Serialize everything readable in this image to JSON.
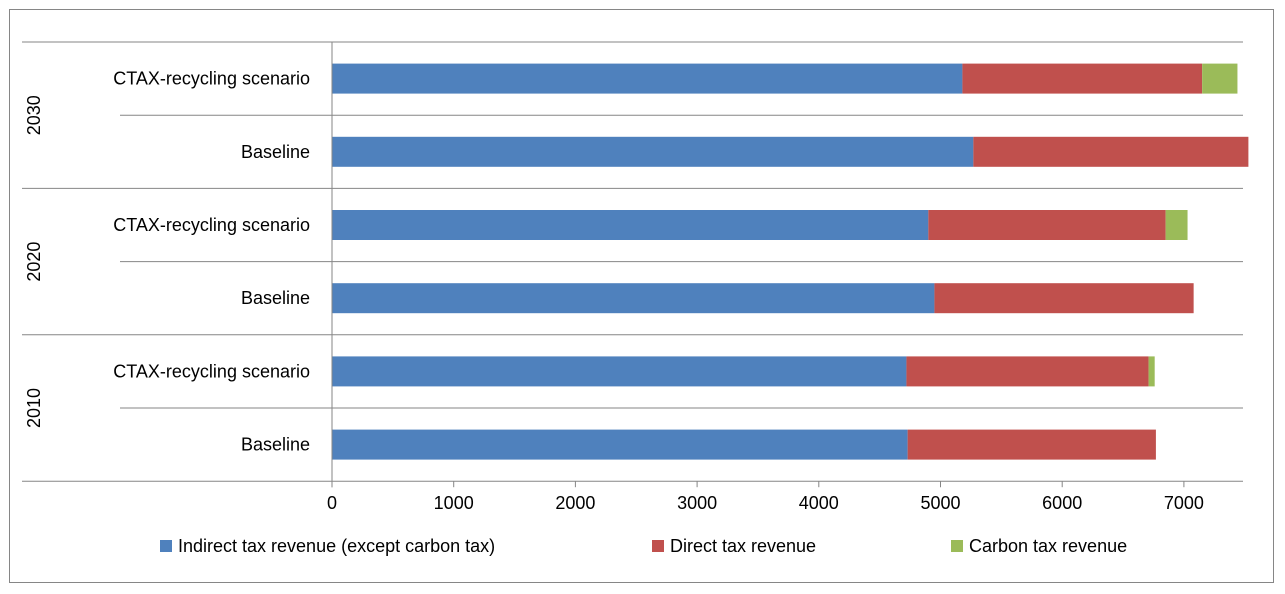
{
  "chart_data": {
    "type": "bar",
    "orientation": "horizontal",
    "stacked": true,
    "title": "",
    "xlabel": "",
    "ylabel": "",
    "xlim": [
      0,
      7500
    ],
    "xticks": [
      0,
      1000,
      2000,
      3000,
      4000,
      5000,
      6000,
      7000
    ],
    "groups": [
      "2030",
      "2020",
      "2010"
    ],
    "categories": [
      {
        "group": "2030",
        "label": "CTAX-recycling scenario"
      },
      {
        "group": "2030",
        "label": "Baseline"
      },
      {
        "group": "2020",
        "label": "CTAX-recycling scenario"
      },
      {
        "group": "2020",
        "label": "Baseline"
      },
      {
        "group": "2010",
        "label": "CTAX-recycling scenario"
      },
      {
        "group": "2010",
        "label": "Baseline"
      }
    ],
    "series": [
      {
        "name": "Indirect tax revenue (except carbon tax)",
        "color": "#4F81BD",
        "values": [
          5180,
          5270,
          4900,
          4950,
          4720,
          4730
        ]
      },
      {
        "name": "Direct tax revenue",
        "color": "#C0504D",
        "values": [
          1970,
          2260,
          1950,
          2130,
          1990,
          2040
        ]
      },
      {
        "name": "Carbon tax revenue",
        "color": "#9BBB59",
        "values": [
          290,
          0,
          180,
          0,
          50,
          0
        ]
      }
    ],
    "grid": false,
    "legend_position": "bottom"
  }
}
